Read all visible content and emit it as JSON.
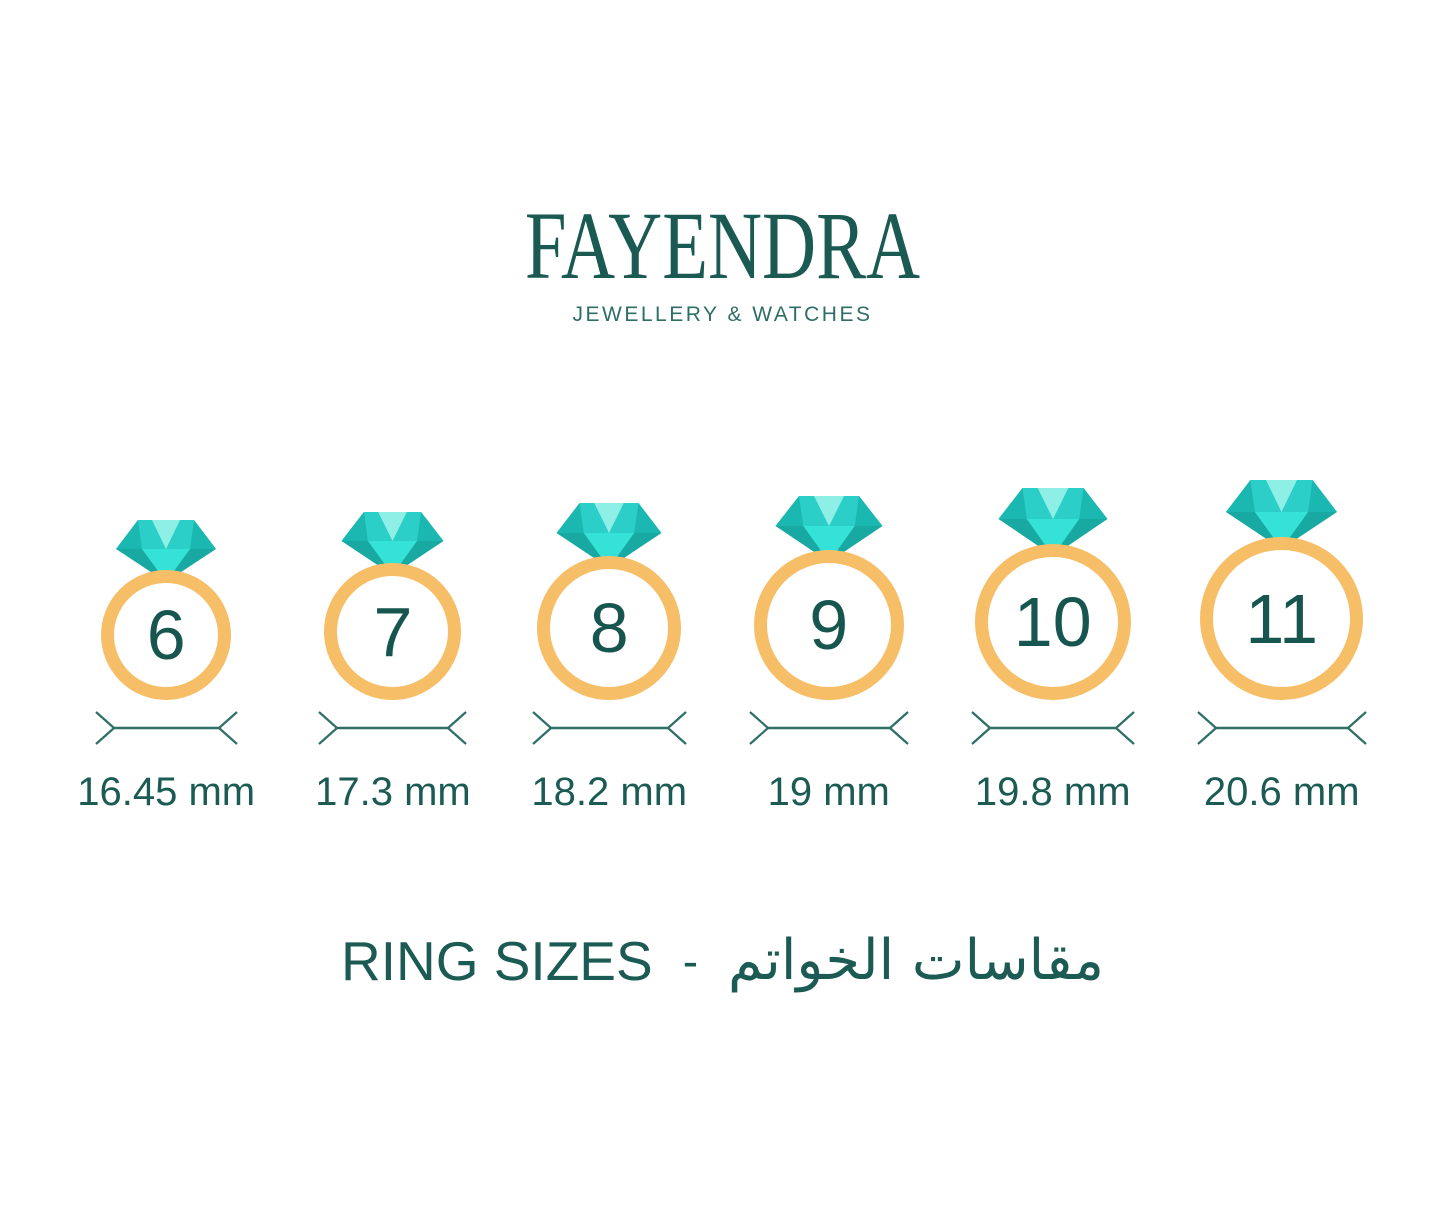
{
  "logo": {
    "brand": "FAYENDRA",
    "tagline": "JEWELLERY & WATCHES"
  },
  "rings": [
    {
      "size": "6",
      "diameter_mm": 16.45,
      "diameter_label": "16.45 mm"
    },
    {
      "size": "7",
      "diameter_mm": 17.3,
      "diameter_label": "17.3 mm"
    },
    {
      "size": "8",
      "diameter_mm": 18.2,
      "diameter_label": "18.2 mm"
    },
    {
      "size": "9",
      "diameter_mm": 19,
      "diameter_label": "19 mm"
    },
    {
      "size": "10",
      "diameter_mm": 19.8,
      "diameter_label": "19.8 mm"
    },
    {
      "size": "11",
      "diameter_mm": 20.6,
      "diameter_label": "20.6 mm"
    }
  ],
  "footer": {
    "title_en": "RING SIZES",
    "separator": "-",
    "title_ar": "مقاسات الخواتم"
  },
  "colors": {
    "brand_teal": "#1A5A52",
    "tagline_teal": "#2F6E67",
    "text_teal": "#1B5B53",
    "number_teal": "#17564F",
    "arrow_teal": "#2E6F68",
    "band_orange": "#F7BE68",
    "diamond_light": "#8EEFE7",
    "diamond_bright": "#35E2D8",
    "diamond_medium": "#2BCFC7",
    "diamond_dark": "#1BB8B1",
    "diamond_deep": "#18A9A2"
  }
}
